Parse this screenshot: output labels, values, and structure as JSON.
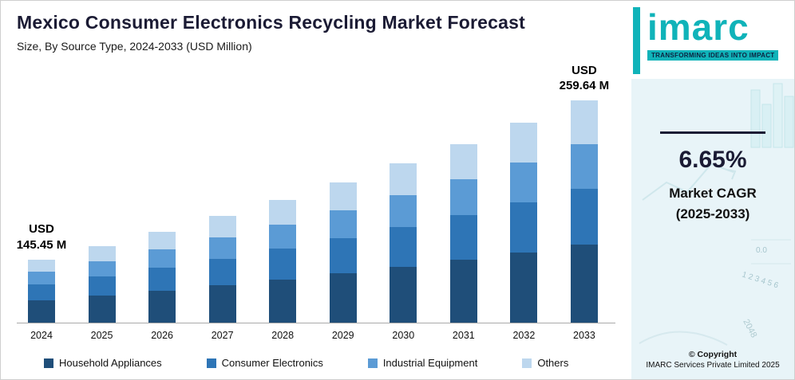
{
  "chart_data": {
    "type": "bar",
    "stacked": true,
    "title": "Mexico Consumer Electronics Recycling Market Forecast",
    "subtitle": "Size, By Source Type, 2024-2033 (USD Million)",
    "unit": "USD Million",
    "categories": [
      "2024",
      "2025",
      "2026",
      "2027",
      "2028",
      "2029",
      "2030",
      "2031",
      "2032",
      "2033"
    ],
    "series": [
      {
        "name": "Household Appliances",
        "color": "#1f4e79",
        "values": [
          50.91,
          54.29,
          57.9,
          61.75,
          65.86,
          70.24,
          74.91,
          79.89,
          85.21,
          90.87
        ]
      },
      {
        "name": "Consumer Electronics",
        "color": "#2e75b6",
        "values": [
          36.36,
          38.78,
          41.36,
          44.11,
          47.04,
          50.17,
          53.51,
          57.07,
          60.86,
          64.91
        ]
      },
      {
        "name": "Industrial Equipment",
        "color": "#5b9bd5",
        "values": [
          29.09,
          31.02,
          33.09,
          35.29,
          37.63,
          40.14,
          42.81,
          45.65,
          48.69,
          51.93
        ]
      },
      {
        "name": "Others",
        "color": "#bdd7ee",
        "values": [
          29.09,
          31.02,
          33.09,
          35.29,
          37.63,
          40.14,
          42.81,
          45.65,
          48.69,
          51.93
        ]
      }
    ],
    "totals": [
      145.45,
      155.11,
      165.44,
      176.44,
      188.16,
      200.69,
      214.04,
      228.26,
      243.45,
      259.64
    ],
    "annotations": [
      {
        "category": "2024",
        "lines": [
          "USD",
          "145.45 M"
        ]
      },
      {
        "category": "2033",
        "lines": [
          "USD",
          "259.64 M"
        ]
      }
    ],
    "legend_position": "bottom",
    "y_axis_visible": false,
    "grid": false,
    "xlabel": "",
    "ylabel": "",
    "display": {
      "baseline_value": 100,
      "pixels_per_unit": 1.75
    }
  },
  "side_panel": {
    "logo_text": "imarc",
    "tagline": "TRANSFORMING IDEAS INTO IMPACT",
    "cagr_value": "6.65%",
    "cagr_label_line1": "Market CAGR",
    "cagr_label_line2": "(2025-2033)",
    "copyright_line1": "© Copyright",
    "copyright_line2": "IMARC Services Private Limited 2025",
    "decor_number1": "0.0",
    "decor_number2": "1 2 3 4 5 6",
    "decor_number3": "2048"
  },
  "colors": {
    "accent_teal": "#10b3b9",
    "title_navy": "#1b1b34",
    "side_panel_bg": "#e8f4f8",
    "axis_line": "#a9a9a9"
  }
}
